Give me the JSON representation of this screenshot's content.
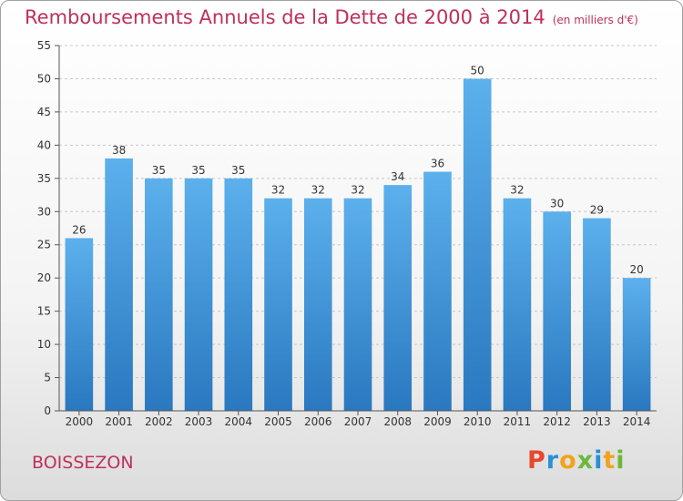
{
  "title": {
    "main": "Remboursements Annuels de la Dette de 2000 à 2014",
    "unit": "(en milliers d'€)"
  },
  "location": "BOISSEZON",
  "logo": {
    "text": "Proxiti",
    "letter_colors": [
      "#e8472b",
      "#2a8fd6",
      "#f2a31c",
      "#6cb83a",
      "#2a8fd6",
      "#f2a31c",
      "#6cb83a"
    ]
  },
  "colors": {
    "title": "#c0305a",
    "bar_top": "#5cb0ec",
    "bar_bottom": "#2a78c0"
  },
  "chart_data": {
    "type": "bar",
    "categories": [
      "2000",
      "2001",
      "2002",
      "2003",
      "2004",
      "2005",
      "2006",
      "2007",
      "2008",
      "2009",
      "2010",
      "2011",
      "2012",
      "2013",
      "2014"
    ],
    "values": [
      26,
      38,
      35,
      35,
      35,
      32,
      32,
      32,
      34,
      36,
      50,
      32,
      30,
      29,
      20
    ],
    "title": "Remboursements Annuels de la Dette de 2000 à 2014",
    "xlabel": "",
    "ylabel": "",
    "ylim": [
      0,
      55
    ],
    "yticks": [
      0,
      5,
      10,
      15,
      20,
      25,
      30,
      35,
      40,
      45,
      50,
      55
    ],
    "grid": "horizontal dashed",
    "data_labels": true
  }
}
